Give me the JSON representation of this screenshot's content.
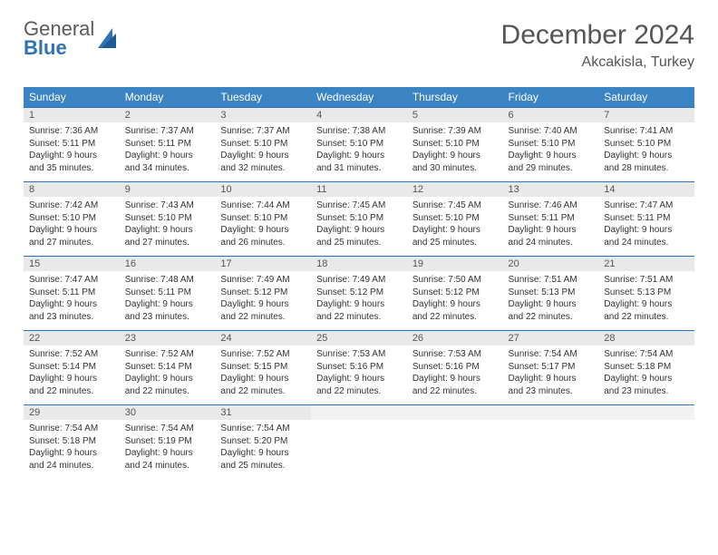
{
  "logo": {
    "general": "General",
    "blue": "Blue"
  },
  "header": {
    "month_title": "December 2024",
    "location": "Akcakisla, Turkey"
  },
  "colors": {
    "header_bg": "#3a84c4",
    "header_text": "#ffffff",
    "cell_border": "#2e72b8",
    "daynum_bg": "#e9e9e9",
    "text": "#333333",
    "logo_gray": "#5a5a5a",
    "logo_blue": "#2e72b8"
  },
  "weekdays": [
    "Sunday",
    "Monday",
    "Tuesday",
    "Wednesday",
    "Thursday",
    "Friday",
    "Saturday"
  ],
  "days": [
    {
      "n": "1",
      "sr": "7:36 AM",
      "ss": "5:11 PM",
      "dlh": "9",
      "dlm": "35"
    },
    {
      "n": "2",
      "sr": "7:37 AM",
      "ss": "5:11 PM",
      "dlh": "9",
      "dlm": "34"
    },
    {
      "n": "3",
      "sr": "7:37 AM",
      "ss": "5:10 PM",
      "dlh": "9",
      "dlm": "32"
    },
    {
      "n": "4",
      "sr": "7:38 AM",
      "ss": "5:10 PM",
      "dlh": "9",
      "dlm": "31"
    },
    {
      "n": "5",
      "sr": "7:39 AM",
      "ss": "5:10 PM",
      "dlh": "9",
      "dlm": "30"
    },
    {
      "n": "6",
      "sr": "7:40 AM",
      "ss": "5:10 PM",
      "dlh": "9",
      "dlm": "29"
    },
    {
      "n": "7",
      "sr": "7:41 AM",
      "ss": "5:10 PM",
      "dlh": "9",
      "dlm": "28"
    },
    {
      "n": "8",
      "sr": "7:42 AM",
      "ss": "5:10 PM",
      "dlh": "9",
      "dlm": "27"
    },
    {
      "n": "9",
      "sr": "7:43 AM",
      "ss": "5:10 PM",
      "dlh": "9",
      "dlm": "27"
    },
    {
      "n": "10",
      "sr": "7:44 AM",
      "ss": "5:10 PM",
      "dlh": "9",
      "dlm": "26"
    },
    {
      "n": "11",
      "sr": "7:45 AM",
      "ss": "5:10 PM",
      "dlh": "9",
      "dlm": "25"
    },
    {
      "n": "12",
      "sr": "7:45 AM",
      "ss": "5:10 PM",
      "dlh": "9",
      "dlm": "25"
    },
    {
      "n": "13",
      "sr": "7:46 AM",
      "ss": "5:11 PM",
      "dlh": "9",
      "dlm": "24"
    },
    {
      "n": "14",
      "sr": "7:47 AM",
      "ss": "5:11 PM",
      "dlh": "9",
      "dlm": "24"
    },
    {
      "n": "15",
      "sr": "7:47 AM",
      "ss": "5:11 PM",
      "dlh": "9",
      "dlm": "23"
    },
    {
      "n": "16",
      "sr": "7:48 AM",
      "ss": "5:11 PM",
      "dlh": "9",
      "dlm": "23"
    },
    {
      "n": "17",
      "sr": "7:49 AM",
      "ss": "5:12 PM",
      "dlh": "9",
      "dlm": "22"
    },
    {
      "n": "18",
      "sr": "7:49 AM",
      "ss": "5:12 PM",
      "dlh": "9",
      "dlm": "22"
    },
    {
      "n": "19",
      "sr": "7:50 AM",
      "ss": "5:12 PM",
      "dlh": "9",
      "dlm": "22"
    },
    {
      "n": "20",
      "sr": "7:51 AM",
      "ss": "5:13 PM",
      "dlh": "9",
      "dlm": "22"
    },
    {
      "n": "21",
      "sr": "7:51 AM",
      "ss": "5:13 PM",
      "dlh": "9",
      "dlm": "22"
    },
    {
      "n": "22",
      "sr": "7:52 AM",
      "ss": "5:14 PM",
      "dlh": "9",
      "dlm": "22"
    },
    {
      "n": "23",
      "sr": "7:52 AM",
      "ss": "5:14 PM",
      "dlh": "9",
      "dlm": "22"
    },
    {
      "n": "24",
      "sr": "7:52 AM",
      "ss": "5:15 PM",
      "dlh": "9",
      "dlm": "22"
    },
    {
      "n": "25",
      "sr": "7:53 AM",
      "ss": "5:16 PM",
      "dlh": "9",
      "dlm": "22"
    },
    {
      "n": "26",
      "sr": "7:53 AM",
      "ss": "5:16 PM",
      "dlh": "9",
      "dlm": "22"
    },
    {
      "n": "27",
      "sr": "7:54 AM",
      "ss": "5:17 PM",
      "dlh": "9",
      "dlm": "23"
    },
    {
      "n": "28",
      "sr": "7:54 AM",
      "ss": "5:18 PM",
      "dlh": "9",
      "dlm": "23"
    },
    {
      "n": "29",
      "sr": "7:54 AM",
      "ss": "5:18 PM",
      "dlh": "9",
      "dlm": "24"
    },
    {
      "n": "30",
      "sr": "7:54 AM",
      "ss": "5:19 PM",
      "dlh": "9",
      "dlm": "24"
    },
    {
      "n": "31",
      "sr": "7:54 AM",
      "ss": "5:20 PM",
      "dlh": "9",
      "dlm": "25"
    }
  ],
  "labels": {
    "sunrise": "Sunrise:",
    "sunset": "Sunset:",
    "daylight": "Daylight:",
    "hours": "hours",
    "and": "and",
    "minutes": "minutes."
  },
  "grid": {
    "start_weekday": 0,
    "total_cells": 35
  }
}
